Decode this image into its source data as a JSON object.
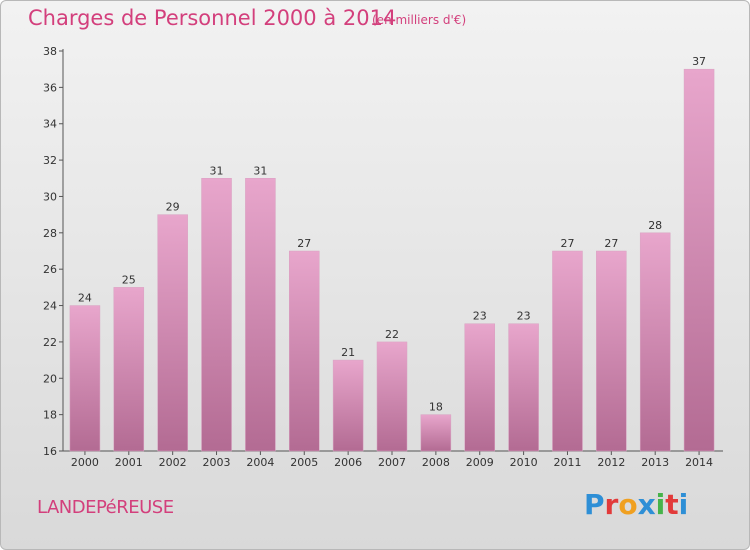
{
  "header": {
    "title": "Charges de Personnel 2000 à 2014",
    "unit": "(en milliers d'€)"
  },
  "footer": {
    "city": "LANDEPéREUSE",
    "logo_letters": [
      "P",
      "r",
      "o",
      "x",
      "i",
      "t",
      "i"
    ],
    "logo_colors": [
      "#2e8fd6",
      "#e23a3a",
      "#f0a020",
      "#2e8fd6",
      "#46b34a",
      "#e23a3a",
      "#2e8fd6"
    ]
  },
  "colors": {
    "bar_top": "#e8a6cc",
    "bar_bottom": "#b36b93",
    "title": "#d33f7c"
  },
  "chart_data": {
    "type": "bar",
    "title": "Charges de Personnel 2000 à 2014",
    "subtitle": "(en milliers d'€)",
    "categories": [
      "2000",
      "2001",
      "2002",
      "2003",
      "2004",
      "2005",
      "2006",
      "2007",
      "2008",
      "2009",
      "2010",
      "2011",
      "2012",
      "2013",
      "2014"
    ],
    "values": [
      24,
      25,
      29,
      31,
      31,
      27,
      21,
      22,
      18,
      23,
      23,
      27,
      27,
      28,
      37
    ],
    "ylim": [
      16,
      38
    ],
    "yticks": [
      16,
      18,
      20,
      22,
      24,
      26,
      28,
      30,
      32,
      34,
      36,
      38
    ],
    "grid": false,
    "data_labels": true
  }
}
